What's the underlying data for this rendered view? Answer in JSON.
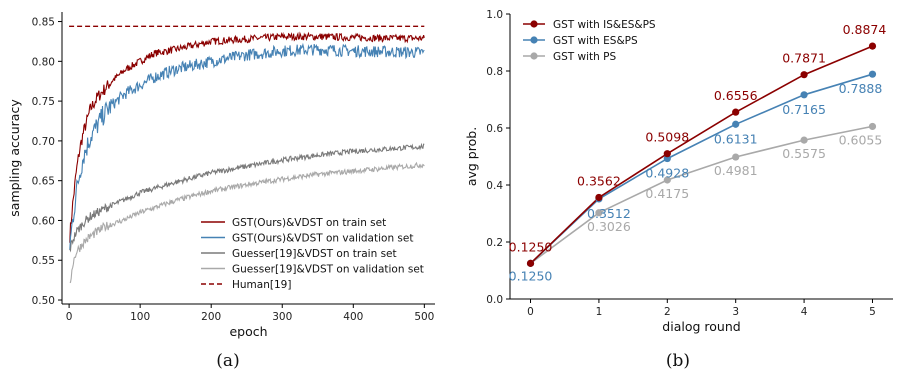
{
  "chart_data": [
    {
      "type": "line",
      "panel_label": "(a)",
      "xlabel": "epoch",
      "ylabel": "sampling accuracy",
      "xlim": [
        -10,
        515
      ],
      "ylim": [
        0.495,
        0.862
      ],
      "xticks": [
        0,
        100,
        200,
        300,
        400,
        500
      ],
      "yticks": [
        0.5,
        0.55,
        0.6,
        0.65,
        0.7,
        0.75,
        0.8,
        0.85
      ],
      "grid": false,
      "legend_position": "lower-right",
      "series": [
        {
          "name": "GST(Ours)&VDST on train set",
          "color": "#8b0000",
          "x": [
            0,
            5,
            10,
            15,
            20,
            30,
            40,
            50,
            60,
            80,
            100,
            120,
            150,
            200,
            250,
            300,
            350,
            400,
            450,
            500
          ],
          "values": [
            0.57,
            0.62,
            0.66,
            0.69,
            0.71,
            0.74,
            0.755,
            0.765,
            0.775,
            0.79,
            0.8,
            0.81,
            0.815,
            0.825,
            0.828,
            0.831,
            0.831,
            0.83,
            0.829,
            0.829
          ]
        },
        {
          "name": "GST(Ours)&VDST on validation set",
          "color": "#4682b4",
          "x": [
            0,
            5,
            10,
            15,
            20,
            30,
            40,
            50,
            60,
            80,
            100,
            120,
            150,
            200,
            250,
            300,
            350,
            400,
            450,
            500
          ],
          "values": [
            0.56,
            0.6,
            0.635,
            0.66,
            0.68,
            0.705,
            0.72,
            0.735,
            0.745,
            0.76,
            0.77,
            0.78,
            0.79,
            0.8,
            0.808,
            0.813,
            0.815,
            0.813,
            0.812,
            0.811
          ]
        },
        {
          "name": "Guesser[19]&VDST on train set",
          "color": "#7a7a7a",
          "x": [
            0,
            5,
            10,
            20,
            30,
            50,
            75,
            100,
            150,
            200,
            250,
            300,
            350,
            400,
            450,
            500
          ],
          "values": [
            0.56,
            0.575,
            0.585,
            0.597,
            0.605,
            0.615,
            0.625,
            0.635,
            0.648,
            0.66,
            0.668,
            0.676,
            0.682,
            0.687,
            0.69,
            0.693
          ]
        },
        {
          "name": "Guesser[19]&VDST on validation set",
          "color": "#a9a9a9",
          "x": [
            0,
            5,
            10,
            20,
            30,
            50,
            75,
            100,
            150,
            200,
            250,
            300,
            350,
            400,
            450,
            500
          ],
          "values": [
            0.51,
            0.545,
            0.56,
            0.572,
            0.58,
            0.592,
            0.6,
            0.61,
            0.625,
            0.637,
            0.645,
            0.652,
            0.658,
            0.662,
            0.666,
            0.67
          ]
        },
        {
          "name": "Human[19]",
          "color": "#8b0000",
          "dashed": true,
          "x": [
            0,
            500
          ],
          "values": [
            0.844,
            0.844
          ]
        }
      ]
    },
    {
      "type": "line",
      "panel_label": "(b)",
      "xlabel": "dialog round",
      "ylabel": "avg prob.",
      "categories": [
        "0",
        "1",
        "2",
        "3",
        "4",
        "5"
      ],
      "xlim": [
        -0.3,
        5.3
      ],
      "ylim": [
        0.0,
        1.0
      ],
      "yticks": [
        "0.0",
        "0.2",
        "0.4",
        "0.6",
        "0.8",
        "1.0"
      ],
      "grid": false,
      "legend_position": "top-left",
      "series": [
        {
          "name": "GST with IS&ES&PS",
          "color": "#8b0000",
          "values": [
            0.125,
            0.3562,
            0.5098,
            0.6556,
            0.7871,
            0.8874
          ],
          "labels": [
            "0.1250",
            "0.3562",
            "0.5098",
            "0.6556",
            "0.7871",
            "0.8874"
          ]
        },
        {
          "name": "GST with ES&PS",
          "color": "#4682b4",
          "values": [
            0.125,
            0.3512,
            0.4928,
            0.6131,
            0.7165,
            0.7888
          ],
          "labels": [
            "0.1250",
            "0.3512",
            "0.4928",
            "0.6131",
            "0.7165",
            "0.7888"
          ]
        },
        {
          "name": "GST with PS",
          "color": "#a9a9a9",
          "values": [
            0.125,
            0.3026,
            0.4175,
            0.4981,
            0.5575,
            0.6055
          ],
          "labels": [
            "0.1250",
            "0.3026",
            "0.4175",
            "0.4981",
            "0.5575",
            "0.6055"
          ]
        }
      ]
    }
  ]
}
